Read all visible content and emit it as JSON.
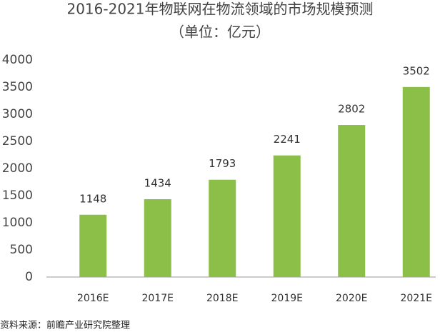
{
  "chart_data": {
    "type": "bar",
    "title": "2016-2021年物联网在物流领域的市场规模预测",
    "subtitle": "（单位：亿元）",
    "categories": [
      "2016E",
      "2017E",
      "2018E",
      "2019E",
      "2020E",
      "2021E"
    ],
    "values": [
      1148,
      1434,
      1793,
      2241,
      2802,
      3502
    ],
    "color": "#8bbf47",
    "ylim": [
      0,
      4000
    ],
    "yticks": [
      0,
      500,
      1000,
      1500,
      2000,
      2500,
      3000,
      3500,
      4000
    ],
    "grid": false,
    "source": "资料来源：前瞻产业研究院整理"
  }
}
